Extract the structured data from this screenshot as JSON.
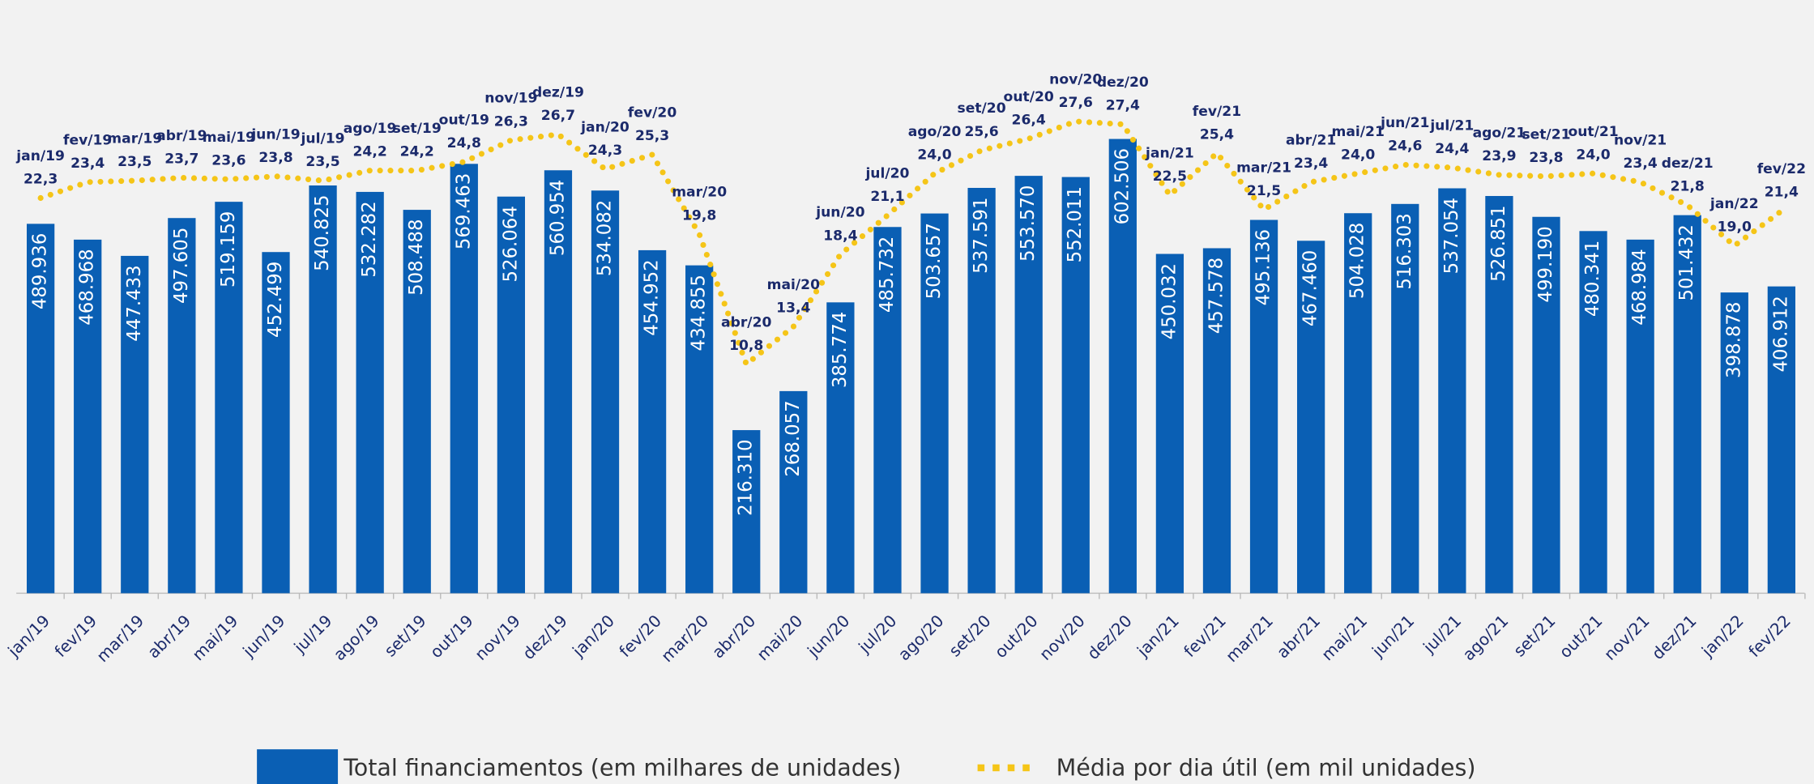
{
  "chart_data": {
    "type": "bar_line",
    "categories": [
      "jan/19",
      "fev/19",
      "mar/19",
      "abr/19",
      "mai/19",
      "jun/19",
      "jul/19",
      "ago/19",
      "set/19",
      "out/19",
      "nov/19",
      "dez/19",
      "jan/20",
      "fev/20",
      "mar/20",
      "abr/20",
      "mai/20",
      "jun/20",
      "jul/20",
      "ago/20",
      "set/20",
      "out/20",
      "nov/20",
      "dez/20",
      "jan/21",
      "fev/21",
      "mar/21",
      "abr/21",
      "mai/21",
      "jun/21",
      "jul/21",
      "ago/21",
      "set/21",
      "out/21",
      "nov/21",
      "dez/21",
      "jan/22",
      "fev/22"
    ],
    "series": [
      {
        "name": "Total financiamentos (em milhares de unidades)",
        "type": "bar",
        "color": "#0a5fb4",
        "values": [
          489.936,
          468.968,
          447.433,
          497.605,
          519.159,
          452.499,
          540.825,
          532.282,
          508.488,
          569.463,
          526.064,
          560.954,
          534.082,
          454.952,
          434.855,
          216.31,
          268.057,
          385.774,
          485.732,
          503.657,
          537.591,
          553.57,
          552.011,
          602.506,
          450.032,
          457.578,
          495.136,
          467.46,
          504.028,
          516.303,
          537.054,
          526.851,
          499.19,
          480.341,
          468.984,
          501.432,
          398.878,
          406.912
        ],
        "value_labels": [
          "489.936",
          "468.968",
          "447.433",
          "497.605",
          "519.159",
          "452.499",
          "540.825",
          "532.282",
          "508.488",
          "569.463",
          "526.064",
          "560.954",
          "534.082",
          "454.952",
          "434.855",
          "216.310",
          "268.057",
          "385.774",
          "485.732",
          "503.657",
          "537.591",
          "553.570",
          "552.011",
          "602.506",
          "450.032",
          "457.578",
          "495.136",
          "467.460",
          "504.028",
          "516.303",
          "537.054",
          "526.851",
          "499.190",
          "480.341",
          "468.984",
          "501.432",
          "398.878",
          "406.912"
        ]
      },
      {
        "name": "Média por dia útil (em mil unidades)",
        "type": "line",
        "color": "#f5c518",
        "values": [
          22.3,
          23.4,
          23.5,
          23.7,
          23.6,
          23.8,
          23.5,
          24.2,
          24.2,
          24.8,
          26.3,
          26.7,
          24.3,
          25.3,
          19.8,
          10.8,
          13.4,
          18.4,
          21.1,
          24.0,
          25.6,
          26.4,
          27.6,
          27.4,
          22.5,
          25.4,
          21.5,
          23.4,
          24.0,
          24.6,
          24.4,
          23.9,
          23.8,
          24.0,
          23.4,
          21.8,
          19.0,
          21.4
        ],
        "value_labels": [
          "22,3",
          "23,4",
          "23,5",
          "23,7",
          "23,6",
          "23,8",
          "23,5",
          "24,2",
          "24,2",
          "24,8",
          "26,3",
          "26,7",
          "24,3",
          "25,3",
          "19,8",
          "10,8",
          "13,4",
          "18,4",
          "21,1",
          "24,0",
          "25,6",
          "26,4",
          "27,6",
          "27,4",
          "22,5",
          "25,4",
          "21,5",
          "23,4",
          "24,0",
          "24,6",
          "24,4",
          "23,9",
          "23,8",
          "24,0",
          "23,4",
          "21,8",
          "19,0",
          "21,4"
        ]
      }
    ]
  }
}
